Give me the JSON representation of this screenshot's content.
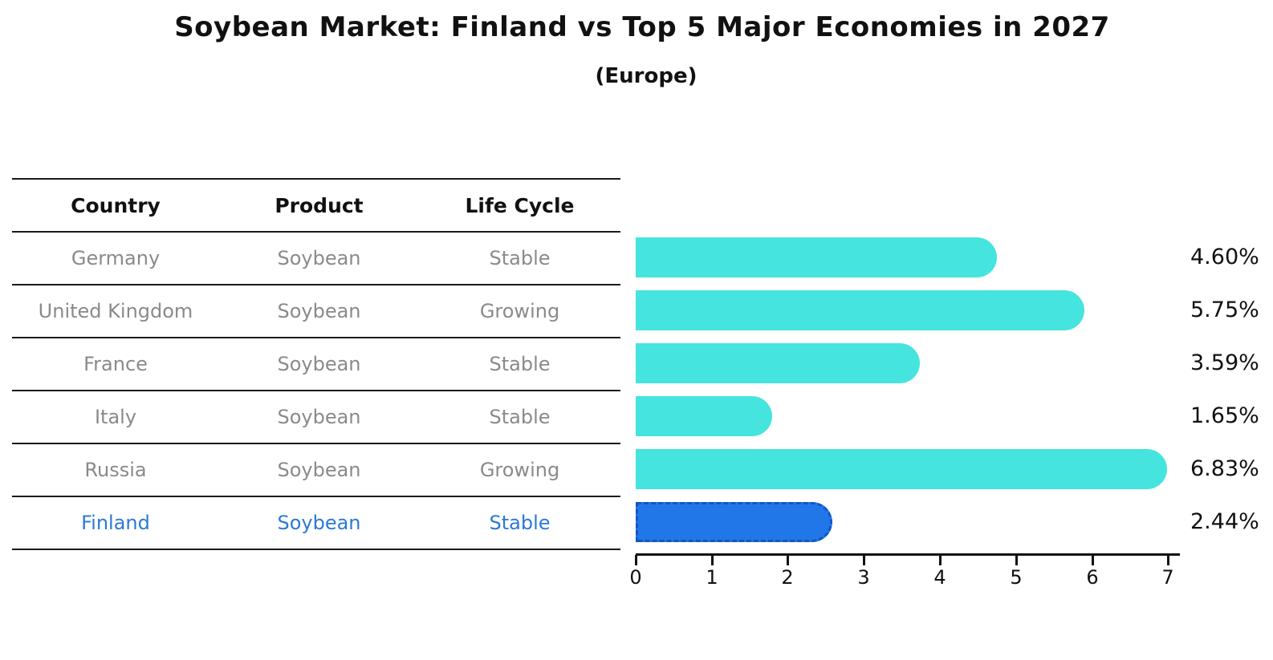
{
  "colors": {
    "bar": "#45E4DE",
    "highlight_bar": "#2277E8",
    "highlight_border": "#1256C4",
    "highlight_text": "#2A79D7",
    "row_text": "#8A8A8A",
    "heading_text": "#111111",
    "axis": "#111111"
  },
  "table": {
    "headers": [
      "Country",
      "Product",
      "Life Cycle"
    ]
  },
  "chart_data": {
    "type": "bar",
    "orientation": "horizontal",
    "title": "Soybean Market: Finland vs Top 5 Major Economies in 2027",
    "subtitle": "(Europe)",
    "xlim": [
      0,
      7
    ],
    "x_ticks": [
      "0",
      "1",
      "2",
      "3",
      "4",
      "5",
      "6",
      "7"
    ],
    "grid": false,
    "legend": false,
    "rows": [
      {
        "country": "Germany",
        "product": "Soybean",
        "life_cycle": "Stable",
        "value": 4.6,
        "label": "4.60%",
        "highlight": false
      },
      {
        "country": "United Kingdom",
        "product": "Soybean",
        "life_cycle": "Growing",
        "value": 5.75,
        "label": "5.75%",
        "highlight": false
      },
      {
        "country": "France",
        "product": "Soybean",
        "life_cycle": "Stable",
        "value": 3.59,
        "label": "3.59%",
        "highlight": false
      },
      {
        "country": "Italy",
        "product": "Soybean",
        "life_cycle": "Stable",
        "value": 1.65,
        "label": "1.65%",
        "highlight": false
      },
      {
        "country": "Russia",
        "product": "Soybean",
        "life_cycle": "Growing",
        "value": 6.83,
        "label": "6.83%",
        "highlight": false
      },
      {
        "country": "Finland",
        "product": "Soybean",
        "life_cycle": "Stable",
        "value": 2.44,
        "label": "2.44%",
        "highlight": true
      }
    ]
  }
}
